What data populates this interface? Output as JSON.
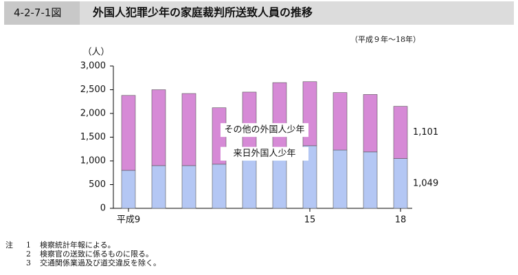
{
  "header": {
    "figure_no": "4-2-7-1図",
    "title": "外国人犯罪少年の家庭裁判所送致人員の推移"
  },
  "chart_data": {
    "type": "stacked-bar",
    "subtitle": "（平成９年～18年）",
    "y_label": "（人）",
    "categories": [
      "平成9",
      null,
      null,
      null,
      null,
      null,
      "15",
      null,
      null,
      "18"
    ],
    "series": [
      {
        "name": "来日外国人少年",
        "color": "#b4c7f4",
        "values": [
          800,
          900,
          900,
          930,
          1190,
          1250,
          1320,
          1230,
          1190,
          1049
        ],
        "value_labels": [
          null,
          null,
          null,
          null,
          null,
          null,
          null,
          null,
          null,
          "1,049"
        ]
      },
      {
        "name": "その他の外国人少年",
        "color": "#d68ad6",
        "values": [
          1580,
          1600,
          1520,
          1190,
          1260,
          1400,
          1350,
          1210,
          1210,
          1101
        ],
        "value_labels": [
          null,
          null,
          null,
          null,
          null,
          null,
          null,
          null,
          null,
          "1,101"
        ]
      }
    ],
    "ylim": [
      0,
      3000
    ],
    "yticks": [
      0,
      500,
      {
        "value": 1000,
        "label": "1,000"
      },
      {
        "value": 1500,
        "label": "1,500"
      },
      {
        "value": 2000,
        "label": "2,000"
      },
      {
        "value": 2500,
        "label": "2,500"
      },
      {
        "value": 3000,
        "label": "3,000"
      }
    ]
  },
  "notes": {
    "label": "注",
    "items": [
      {
        "num": "1",
        "text": "検察統計年報による。"
      },
      {
        "num": "2",
        "text": "検察官の送致に係るものに限る。"
      },
      {
        "num": "3",
        "text": "交通関係業過及び道交違反を除く。"
      }
    ]
  }
}
